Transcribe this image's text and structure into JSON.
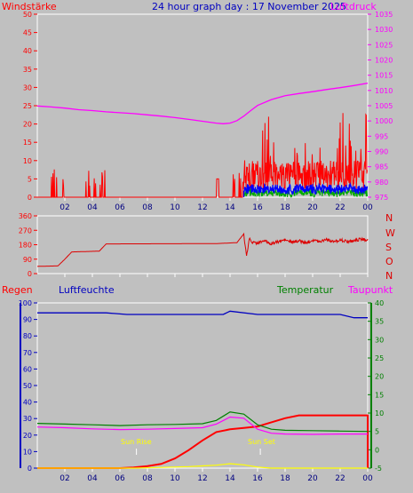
{
  "labels": {
    "wind_title": "Windstärke",
    "date_title": "24 hour graph day : 17 November 2025",
    "pressure_title": "Luftdruck",
    "rain_title": "Regen",
    "humidity_title": "Luftfeuchte",
    "temperature_title": "Temperatur",
    "dewpoint_title": "Taupunkt",
    "compass": [
      "N",
      "W",
      "S",
      "O",
      "N"
    ],
    "sunrise": "Sun Rise",
    "sunset": "Sun Set"
  },
  "colors": {
    "background": "#c0c0c0",
    "wind": "#ff0000",
    "pressure": "#ff00ff",
    "date": "#0000c0",
    "direction": "#dd0000",
    "rain": "#ff0000",
    "humidity": "#0000c0",
    "temperature": "#008000",
    "dewpoint": "#ff00ff",
    "solar": "#ffff00",
    "gust": "#ff0000",
    "avg_wind": "#0000ff",
    "low_wind": "#00aa00"
  },
  "chart_data": [
    {
      "type": "line",
      "title": "24 hour graph day : 17 November 2025",
      "xticks": [
        "02",
        "04",
        "06",
        "08",
        "10",
        "12",
        "14",
        "16",
        "18",
        "20",
        "22",
        "00"
      ],
      "left_axis": {
        "label": "Windstärke",
        "ylim": [
          0,
          50
        ],
        "ticks": [
          0,
          5,
          10,
          15,
          20,
          25,
          30,
          35,
          40,
          45,
          50
        ]
      },
      "right_axis": {
        "label": "Luftdruck",
        "ylim": [
          975,
          1035
        ],
        "ticks": [
          975,
          980,
          985,
          990,
          995,
          1000,
          1005,
          1010,
          1015,
          1020,
          1025,
          1030,
          1035
        ]
      },
      "series": [
        {
          "name": "Luftdruck",
          "axis": "right",
          "x": [
            0,
            1,
            2,
            3,
            4,
            5,
            6,
            7,
            8,
            9,
            10,
            11,
            12,
            13,
            13.5,
            14,
            14.5,
            15,
            15.5,
            16,
            17,
            18,
            19,
            20,
            21,
            22,
            23,
            24
          ],
          "y": [
            1004.9,
            1004.6,
            1004.2,
            1003.7,
            1003.4,
            1003.0,
            1002.7,
            1002.4,
            1002.0,
            1001.6,
            1001.1,
            1000.5,
            999.9,
            999.3,
            999.1,
            999.3,
            1000.1,
            1001.6,
            1003.4,
            1005.1,
            1007.0,
            1008.3,
            1009.0,
            1009.6,
            1010.3,
            1010.9,
            1011.6,
            1012.4
          ]
        }
      ]
    },
    {
      "type": "line",
      "title": "",
      "left_axis": {
        "ylim": [
          0,
          360
        ],
        "ticks": [
          0,
          90,
          180,
          270,
          360
        ]
      },
      "series": [
        {
          "name": "",
          "x": [
            0,
            1.5,
            2,
            2.5,
            4.5,
            5,
            13,
            14.5,
            15,
            15.2,
            15.4,
            15.6,
            16,
            16.5,
            17,
            17.5,
            18,
            18.5,
            19,
            19.5,
            20,
            20.5,
            21,
            21.5,
            22,
            22.5,
            23,
            23.5,
            24
          ],
          "y": [
            45,
            48,
            90,
            135,
            140,
            185,
            187,
            193,
            248,
            105,
            220,
            195,
            190,
            205,
            185,
            200,
            210,
            195,
            205,
            190,
            210,
            200,
            215,
            198,
            210,
            200,
            205,
            215,
            210
          ]
        }
      ]
    },
    {
      "type": "line",
      "title": "",
      "left_axis": {
        "label": "Regen",
        "ylim": [
          0,
          100
        ],
        "ticks": [
          0,
          10,
          20,
          30,
          40,
          50,
          60,
          70,
          80,
          90,
          100
        ]
      },
      "right_axis": {
        "label": "Temperatur",
        "ylim": [
          -5,
          40
        ],
        "ticks": [
          -5,
          0,
          5,
          10,
          15,
          20,
          25,
          30,
          35,
          40
        ]
      },
      "series": [
        {
          "name": "Luftfeuchte",
          "axis": "left",
          "x": [
            0,
            5,
            6.5,
            13.5,
            14,
            16,
            17,
            22,
            23,
            24
          ],
          "y": [
            94,
            94,
            93,
            93,
            95,
            93,
            93,
            93,
            91,
            91
          ]
        },
        {
          "name": "Regen",
          "axis": "left",
          "x": [
            0,
            6,
            7,
            8,
            9,
            10,
            11,
            12,
            13,
            14,
            15,
            16,
            17,
            18,
            19,
            20,
            24
          ],
          "y": [
            0,
            0,
            0.5,
            1.5,
            3,
            7,
            13,
            20,
            26,
            28,
            29,
            30,
            33,
            36,
            38,
            38,
            38
          ]
        },
        {
          "name": "Temperatur",
          "axis": "right",
          "x": [
            0,
            2,
            4,
            6,
            8,
            10,
            12,
            13,
            14,
            15,
            16,
            17,
            18,
            20,
            22,
            24
          ],
          "y": [
            7.2,
            7,
            6.8,
            6.6,
            6.8,
            6.9,
            7.1,
            8,
            10.3,
            9.7,
            6.8,
            5.6,
            5.3,
            5.2,
            5.1,
            5
          ]
        },
        {
          "name": "Taupunkt",
          "axis": "right",
          "x": [
            0,
            2,
            4,
            6,
            8,
            10,
            12,
            13,
            14,
            15,
            16,
            17,
            18,
            20,
            22,
            24
          ],
          "y": [
            6.2,
            6,
            5.7,
            5.5,
            5.6,
            5.8,
            6,
            7,
            8.9,
            8.6,
            5.6,
            4.5,
            4.3,
            4.2,
            4.3,
            4.3
          ]
        },
        {
          "name": "",
          "axis": "right",
          "x": [
            0,
            7,
            9,
            11,
            12,
            13,
            14,
            15,
            16,
            17,
            24
          ],
          "y": [
            -5,
            -5,
            -4.8,
            -4.6,
            -4.4,
            -4.2,
            -3.8,
            -4.1,
            -4.7,
            -5,
            -5
          ]
        }
      ]
    }
  ]
}
